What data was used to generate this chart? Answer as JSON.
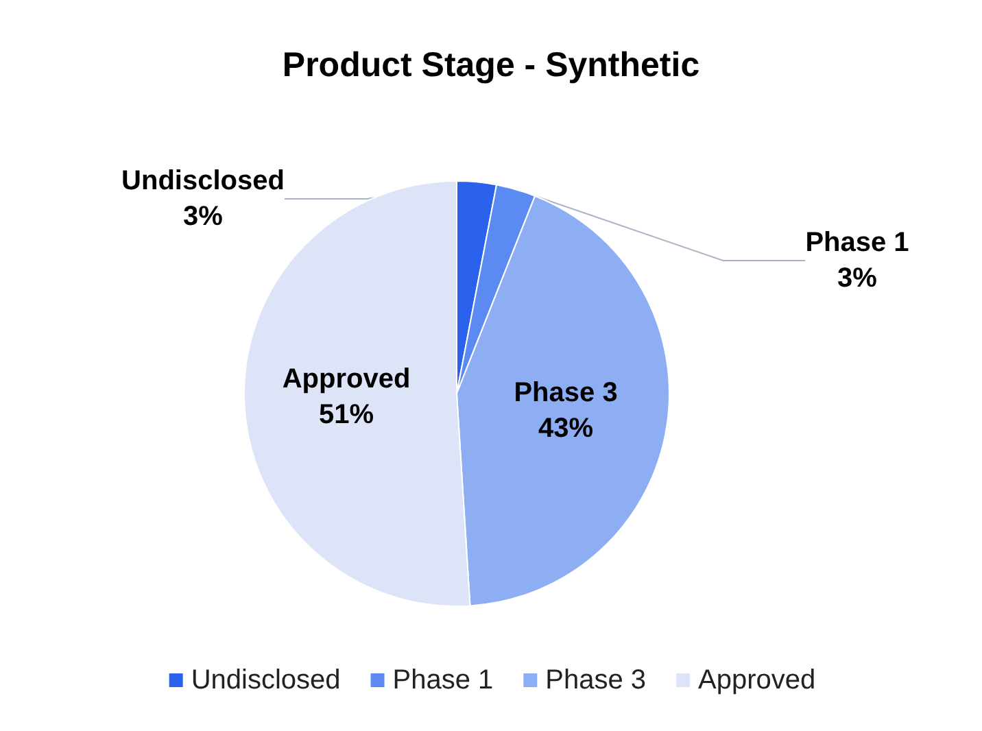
{
  "chart_data": {
    "type": "pie",
    "title": "Product Stage - Synthetic",
    "categories": [
      "Undisclosed",
      "Phase 1",
      "Phase 3",
      "Approved"
    ],
    "values": [
      3,
      3,
      43,
      51
    ],
    "value_labels": [
      "3%",
      "3%",
      "43%",
      "51%"
    ],
    "colors": [
      "#2a62ee",
      "#5a8af2",
      "#8eaef4",
      "#dde4f8"
    ],
    "legend": "bottom"
  }
}
